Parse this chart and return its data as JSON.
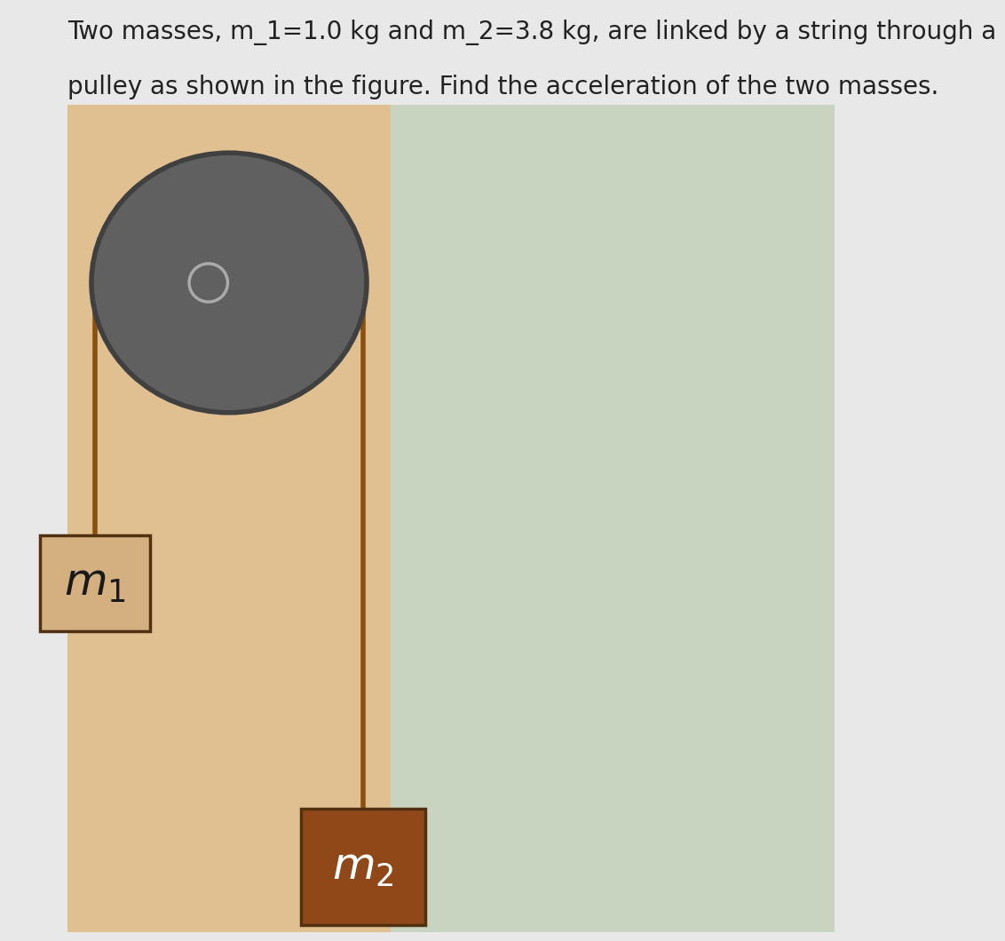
{
  "title_line1": "Two masses, m_1=1.0 kg and m_2=3.8 kg, are linked by a string through a",
  "title_line2": "pulley as shown in the figure. Find the acceleration of the two masses.",
  "bg_overall": "#d8d8d8",
  "bg_color_left": "#e0c090",
  "bg_color_right": "#c8d4c0",
  "pulley_color": "#606060",
  "pulley_border": "#404040",
  "string_color": "#8B5010",
  "m1_box_fill": "#d4b080",
  "m1_box_border": "#503010",
  "m2_box_fill": "#904818",
  "m2_box_border": "#503010",
  "text_color": "#222222",
  "title_fontsize": 20,
  "label_fontsize": 36,
  "page_bg": "#e8e8e8"
}
